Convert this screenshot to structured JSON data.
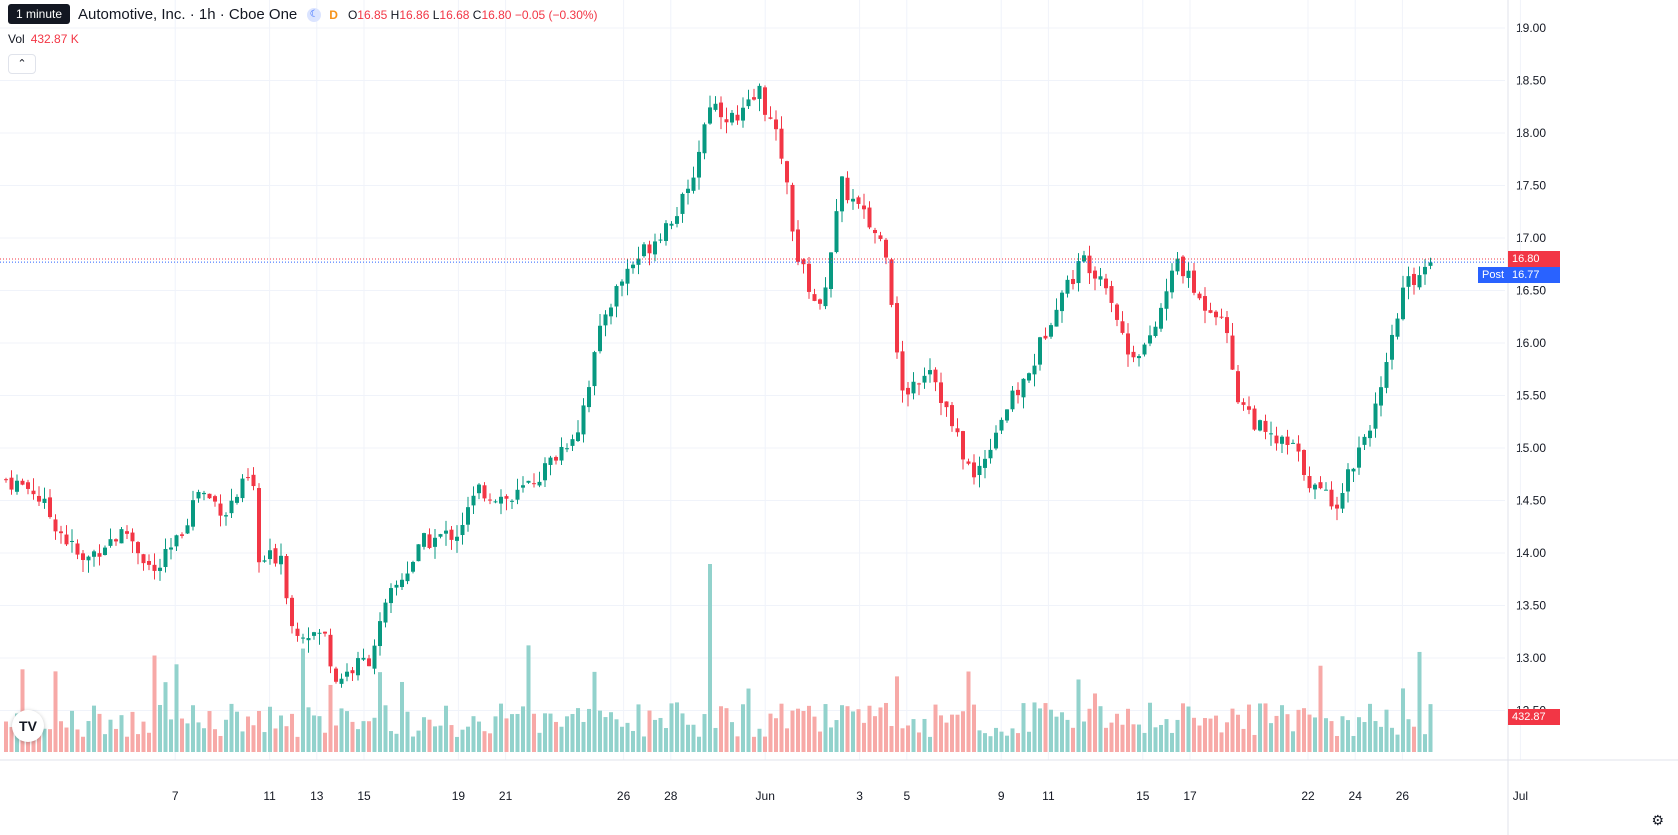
{
  "header": {
    "tooltip": "1 minute",
    "symbol_title": "Automotive, Inc. · 1h · Cboe One",
    "market_icon": "crescent-moon-icon",
    "d_badge": "D",
    "ohlc": {
      "o_label": "O",
      "o": "16.85",
      "h_label": "H",
      "h": "16.86",
      "l_label": "L",
      "l": "16.68",
      "c_label": "C",
      "c": "16.80",
      "change": "−0.05 (−0.30%)"
    },
    "volume_label": "Vol",
    "volume_value": "432.87 K",
    "collapse_icon": "chevron-up-icon"
  },
  "price_axis": {
    "ticks": [
      "19.00",
      "18.50",
      "18.00",
      "17.50",
      "17.00",
      "16.50",
      "16.00",
      "15.50",
      "15.00",
      "14.50",
      "14.00",
      "13.50",
      "13.00",
      "12.50"
    ],
    "last_price": "16.80",
    "post_label": "Post",
    "post_price": "16.77",
    "volume_tag": "432.87 K"
  },
  "time_axis": {
    "labels": [
      {
        "text": "7",
        "day": 7
      },
      {
        "text": "11",
        "day": 11
      },
      {
        "text": "13",
        "day": 13
      },
      {
        "text": "15",
        "day": 15
      },
      {
        "text": "19",
        "day": 19
      },
      {
        "text": "21",
        "day": 21
      },
      {
        "text": "26",
        "day": 26
      },
      {
        "text": "28",
        "day": 28
      },
      {
        "text": "Jun",
        "day": 32
      },
      {
        "text": "3",
        "day": 36
      },
      {
        "text": "5",
        "day": 38
      },
      {
        "text": "9",
        "day": 42
      },
      {
        "text": "11",
        "day": 44
      },
      {
        "text": "15",
        "day": 48
      },
      {
        "text": "17",
        "day": 50
      },
      {
        "text": "22",
        "day": 55
      },
      {
        "text": "24",
        "day": 57
      },
      {
        "text": "26",
        "day": 59
      },
      {
        "text": "Jul",
        "day": 64
      }
    ]
  },
  "colors": {
    "up": "#089981",
    "down": "#f23645",
    "up_volume": "#92d2cc",
    "down_volume": "#f7a9a7",
    "post": "#2962ff",
    "grid": "#f0f3fa"
  },
  "footer": {
    "logo_icon": "tradingview-logo-icon",
    "logo_text": "TV",
    "settings_icon": "gear-icon"
  },
  "chart_data": {
    "type": "candlestick",
    "interval": "1h",
    "price_range": [
      12.5,
      19.0
    ],
    "close_path": [
      {
        "bar": 0,
        "price": 14.7
      },
      {
        "bar": 5,
        "price": 14.6
      },
      {
        "bar": 10,
        "price": 14.2
      },
      {
        "bar": 14,
        "price": 13.9
      },
      {
        "bar": 18,
        "price": 14.1
      },
      {
        "bar": 22,
        "price": 14.2
      },
      {
        "bar": 27,
        "price": 13.8
      },
      {
        "bar": 31,
        "price": 14.1
      },
      {
        "bar": 35,
        "price": 14.6
      },
      {
        "bar": 40,
        "price": 14.4
      },
      {
        "bar": 44,
        "price": 14.7
      },
      {
        "bar": 45,
        "price": 14.6
      },
      {
        "bar": 46,
        "price": 13.9
      },
      {
        "bar": 50,
        "price": 14.0
      },
      {
        "bar": 52,
        "price": 13.3
      },
      {
        "bar": 58,
        "price": 13.2
      },
      {
        "bar": 60,
        "price": 12.8
      },
      {
        "bar": 66,
        "price": 13.0
      },
      {
        "bar": 70,
        "price": 13.6
      },
      {
        "bar": 76,
        "price": 14.1
      },
      {
        "bar": 82,
        "price": 14.2
      },
      {
        "bar": 86,
        "price": 14.6
      },
      {
        "bar": 92,
        "price": 14.5
      },
      {
        "bar": 98,
        "price": 14.8
      },
      {
        "bar": 104,
        "price": 15.2
      },
      {
        "bar": 109,
        "price": 16.3
      },
      {
        "bar": 113,
        "price": 16.7
      },
      {
        "bar": 118,
        "price": 17.0
      },
      {
        "bar": 124,
        "price": 17.4
      },
      {
        "bar": 128,
        "price": 18.3
      },
      {
        "bar": 133,
        "price": 18.1
      },
      {
        "bar": 137,
        "price": 18.4
      },
      {
        "bar": 141,
        "price": 17.8
      },
      {
        "bar": 144,
        "price": 16.8
      },
      {
        "bar": 148,
        "price": 16.3
      },
      {
        "bar": 152,
        "price": 17.5
      },
      {
        "bar": 156,
        "price": 17.2
      },
      {
        "bar": 160,
        "price": 16.9
      },
      {
        "bar": 163,
        "price": 15.5
      },
      {
        "bar": 168,
        "price": 15.8
      },
      {
        "bar": 172,
        "price": 15.2
      },
      {
        "bar": 176,
        "price": 14.7
      },
      {
        "bar": 181,
        "price": 15.3
      },
      {
        "bar": 186,
        "price": 15.7
      },
      {
        "bar": 191,
        "price": 16.4
      },
      {
        "bar": 196,
        "price": 16.8
      },
      {
        "bar": 200,
        "price": 16.6
      },
      {
        "bar": 204,
        "price": 15.9
      },
      {
        "bar": 208,
        "price": 16.0
      },
      {
        "bar": 213,
        "price": 16.8
      },
      {
        "bar": 217,
        "price": 16.4
      },
      {
        "bar": 221,
        "price": 16.3
      },
      {
        "bar": 224,
        "price": 15.5
      },
      {
        "bar": 229,
        "price": 15.1
      },
      {
        "bar": 234,
        "price": 15.0
      },
      {
        "bar": 238,
        "price": 14.6
      },
      {
        "bar": 242,
        "price": 14.5
      },
      {
        "bar": 246,
        "price": 15.0
      },
      {
        "bar": 250,
        "price": 15.5
      },
      {
        "bar": 254,
        "price": 16.5
      },
      {
        "bar": 259,
        "price": 16.8
      }
    ],
    "volume_spikes": [
      {
        "bar": 128,
        "volume": "max"
      }
    ]
  }
}
